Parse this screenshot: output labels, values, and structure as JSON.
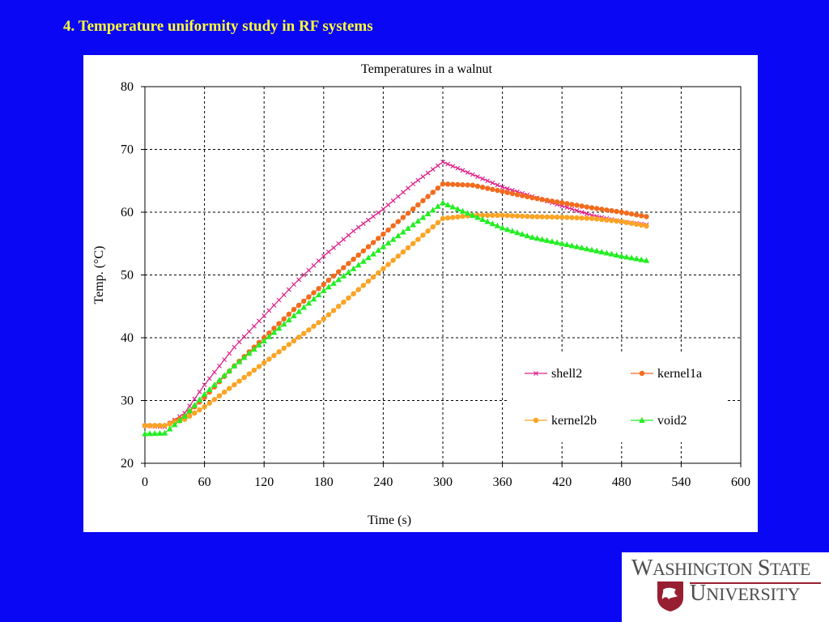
{
  "slide": {
    "title": "4. Temperature uniformity study in RF systems"
  },
  "logo": {
    "line1": "Washington State",
    "line2": "University",
    "color": "#981e32"
  },
  "colors": {
    "background": "#0a07f4",
    "title": "#ffff33"
  },
  "chart_data": {
    "type": "line",
    "title": "Temperatures in  a walnut",
    "xlabel": "Time (s)",
    "ylabel": "Temp. (°C)",
    "xlim": [
      0,
      600
    ],
    "ylim": [
      20,
      80
    ],
    "xticks": [
      "0",
      "60",
      "120",
      "180",
      "240",
      "300",
      "360",
      "420",
      "480",
      "540",
      "600"
    ],
    "yticks": [
      "20",
      "30",
      "40",
      "50",
      "60",
      "70",
      "80"
    ],
    "grid": true,
    "legend_position": "lower-right",
    "series": [
      {
        "name": "shell2",
        "color": "#e0218a",
        "marker": "x",
        "x": [
          0,
          20,
          40,
          60,
          90,
          120,
          150,
          180,
          210,
          240,
          270,
          300,
          330,
          360,
          390,
          420,
          450,
          480,
          505
        ],
        "y": [
          26,
          25.8,
          28.0,
          32.5,
          38.5,
          43.5,
          48.5,
          53.0,
          57.0,
          60.5,
          64.5,
          68.0,
          66.0,
          64.0,
          62.5,
          61.0,
          59.5,
          58.5,
          58.0
        ]
      },
      {
        "name": "kernel1a",
        "color": "#f26b1d",
        "marker": "circle",
        "x": [
          0,
          20,
          40,
          60,
          90,
          120,
          150,
          180,
          210,
          240,
          270,
          300,
          330,
          360,
          390,
          420,
          450,
          480,
          505
        ],
        "y": [
          26,
          26.0,
          27.5,
          30.5,
          35.5,
          40.0,
          44.5,
          48.5,
          52.5,
          56.5,
          60.5,
          64.5,
          64.3,
          63.3,
          62.3,
          61.5,
          60.7,
          60.0,
          59.3
        ]
      },
      {
        "name": "kernel2b",
        "color": "#fba323",
        "marker": "circle",
        "x": [
          0,
          20,
          40,
          60,
          90,
          120,
          150,
          180,
          210,
          240,
          270,
          300,
          330,
          360,
          390,
          420,
          450,
          480,
          505
        ],
        "y": [
          26,
          26.0,
          27.0,
          29.0,
          32.5,
          36.0,
          39.5,
          43.0,
          47.0,
          51.0,
          55.0,
          59.0,
          59.5,
          59.5,
          59.3,
          59.2,
          59.0,
          58.5,
          57.8
        ]
      },
      {
        "name": "void2",
        "color": "#22ee22",
        "marker": "triangle",
        "x": [
          0,
          20,
          40,
          60,
          90,
          120,
          150,
          180,
          210,
          240,
          270,
          300,
          330,
          360,
          390,
          420,
          450,
          480,
          505
        ],
        "y": [
          24.7,
          24.8,
          27.5,
          31.0,
          35.5,
          39.5,
          43.5,
          47.5,
          51.0,
          54.5,
          58.0,
          61.5,
          59.5,
          57.5,
          56.0,
          55.0,
          54.0,
          53.0,
          52.3
        ]
      }
    ]
  }
}
